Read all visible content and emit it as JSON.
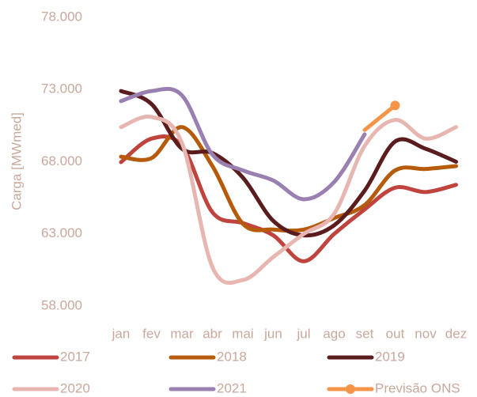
{
  "chart_data": {
    "type": "line",
    "y_label": "Carga [MWmed]",
    "categories": [
      "jan",
      "fev",
      "mar",
      "abr",
      "mai",
      "jun",
      "jul",
      "ago",
      "set",
      "out",
      "nov",
      "dez"
    ],
    "ylim": [
      58000,
      78000
    ],
    "yticks": [
      {
        "value": 58000,
        "label": "58.000"
      },
      {
        "value": 63000,
        "label": "63.000"
      },
      {
        "value": 68000,
        "label": "68.000"
      },
      {
        "value": 73000,
        "label": "73.000"
      },
      {
        "value": 78000,
        "label": "78.000"
      }
    ],
    "grid": false,
    "series": [
      {
        "name": "2017",
        "color": "#c0443e",
        "values": [
          67970,
          69600,
          69100,
          64500,
          63750,
          62900,
          61100,
          63000,
          64700,
          66200,
          65900,
          66400
        ]
      },
      {
        "name": "2018",
        "color": "#b65a0c",
        "values": [
          68350,
          68250,
          70400,
          67700,
          63700,
          63300,
          63300,
          64100,
          65000,
          67400,
          67500,
          67700
        ]
      },
      {
        "name": "2019",
        "color": "#5a1c1c",
        "values": [
          72900,
          72000,
          68900,
          68600,
          66900,
          63900,
          62900,
          63600,
          66000,
          69400,
          68900,
          68000
        ]
      },
      {
        "name": "2020",
        "color": "#e8b6b1",
        "values": [
          70400,
          71100,
          69300,
          60700,
          59800,
          61400,
          63000,
          64400,
          69100,
          70900,
          69600,
          70400
        ]
      },
      {
        "name": "2021",
        "color": "#9a80b1",
        "values": [
          72200,
          72900,
          72600,
          68500,
          67400,
          66700,
          65400,
          66600,
          69900,
          null,
          null,
          null
        ]
      },
      {
        "name": "Previsão ONS",
        "color": "#f5954a",
        "marker": true,
        "values": [
          null,
          null,
          null,
          null,
          null,
          null,
          null,
          null,
          70200,
          71900,
          null,
          null
        ]
      }
    ]
  }
}
